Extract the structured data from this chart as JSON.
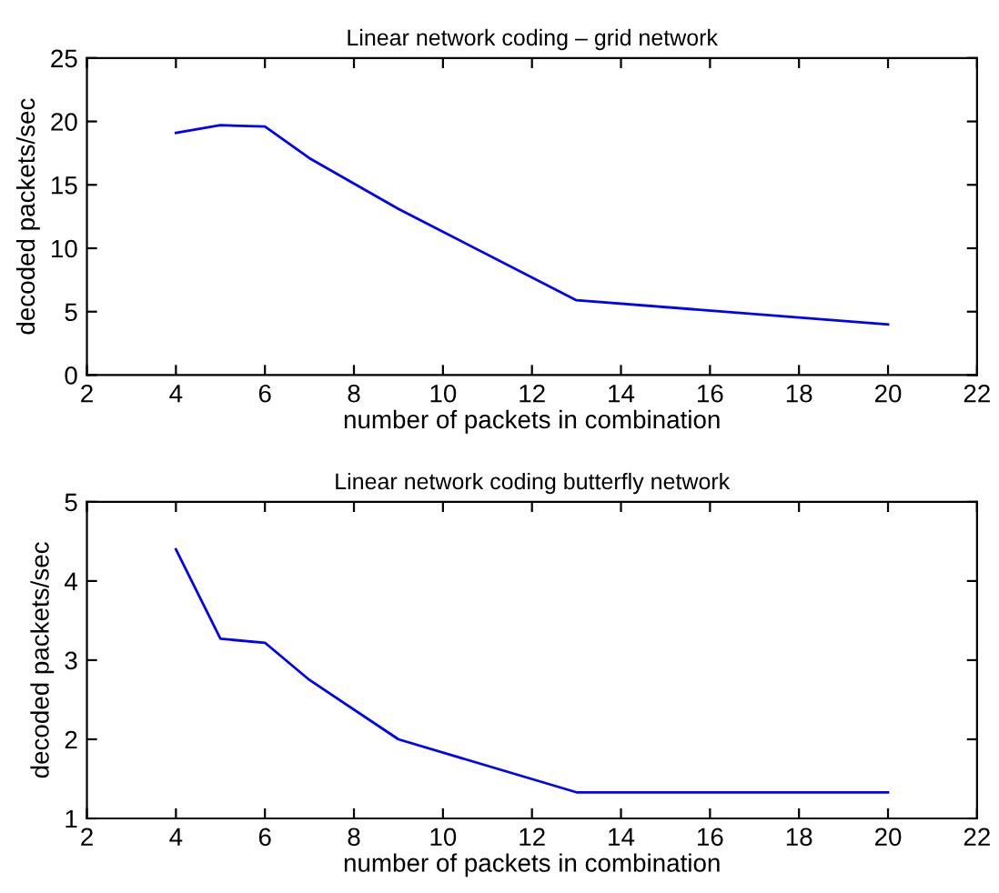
{
  "chart_data": [
    {
      "type": "line",
      "title": "Linear network coding – grid network",
      "xlabel": "number of packets in combination",
      "ylabel": "decoded packets/sec",
      "x": [
        4,
        5,
        6,
        7,
        9,
        13,
        20
      ],
      "series": [
        {
          "color": "#0000ff",
          "values": [
            19.1,
            19.7,
            19.6,
            17.1,
            13.1,
            5.9,
            4.0
          ]
        }
      ],
      "xlim": [
        2,
        22
      ],
      "xticks": [
        2,
        4,
        6,
        8,
        10,
        12,
        14,
        16,
        18,
        20,
        22
      ],
      "ylim": [
        0,
        25
      ],
      "yticks": [
        0,
        5,
        10,
        15,
        20,
        25
      ],
      "grid": false,
      "legend": false
    },
    {
      "type": "line",
      "title": "Linear network coding butterfly network",
      "xlabel": "number of packets in combination",
      "ylabel": "decoded packets/sec",
      "x": [
        4,
        5,
        6,
        7,
        9,
        13,
        20
      ],
      "series": [
        {
          "color": "#0000ff",
          "values": [
            4.4,
            3.27,
            3.22,
            2.75,
            2.0,
            1.33,
            1.33
          ]
        }
      ],
      "xlim": [
        2,
        22
      ],
      "xticks": [
        2,
        4,
        6,
        8,
        10,
        12,
        14,
        16,
        18,
        20,
        22
      ],
      "ylim": [
        1,
        5
      ],
      "yticks": [
        1,
        2,
        3,
        4,
        5
      ],
      "grid": false,
      "legend": false
    }
  ]
}
